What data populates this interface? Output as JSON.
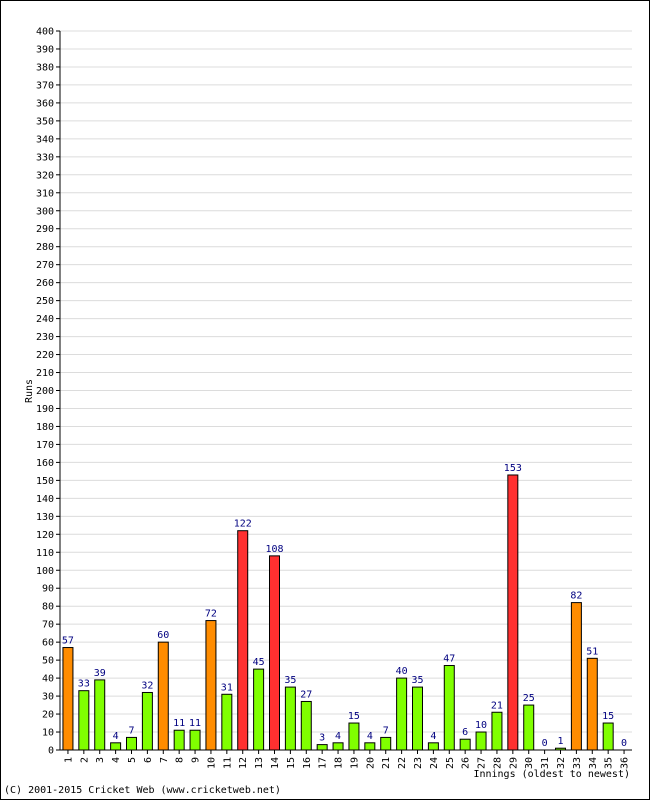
{
  "chart_data": {
    "type": "bar",
    "ylabel": "Runs",
    "xlabel": "Innings (oldest to newest)",
    "ylim": [
      0,
      400
    ],
    "ytick_step": 10,
    "grid": true,
    "categories": [
      "1",
      "2",
      "3",
      "4",
      "5",
      "6",
      "7",
      "8",
      "9",
      "10",
      "11",
      "12",
      "13",
      "14",
      "15",
      "16",
      "17",
      "18",
      "19",
      "20",
      "21",
      "22",
      "23",
      "24",
      "25",
      "26",
      "27",
      "28",
      "29",
      "30",
      "31",
      "32",
      "33",
      "34",
      "35",
      "36"
    ],
    "values": [
      57,
      33,
      39,
      4,
      7,
      32,
      60,
      11,
      11,
      72,
      31,
      122,
      45,
      108,
      35,
      27,
      3,
      4,
      15,
      4,
      7,
      40,
      35,
      4,
      47,
      6,
      10,
      21,
      153,
      25,
      0,
      1,
      82,
      51,
      15,
      0
    ],
    "color_rules": [
      {
        "min": 0,
        "max": 49,
        "color": "#80ff00"
      },
      {
        "min": 50,
        "max": 99,
        "color": "#ff8c00"
      },
      {
        "min": 100,
        "max": 1000,
        "color": "#ff3030"
      }
    ],
    "label_color": "#000080"
  },
  "footer": {
    "copyright": "(C) 2001-2015 Cricket Web (www.cricketweb.net)"
  }
}
